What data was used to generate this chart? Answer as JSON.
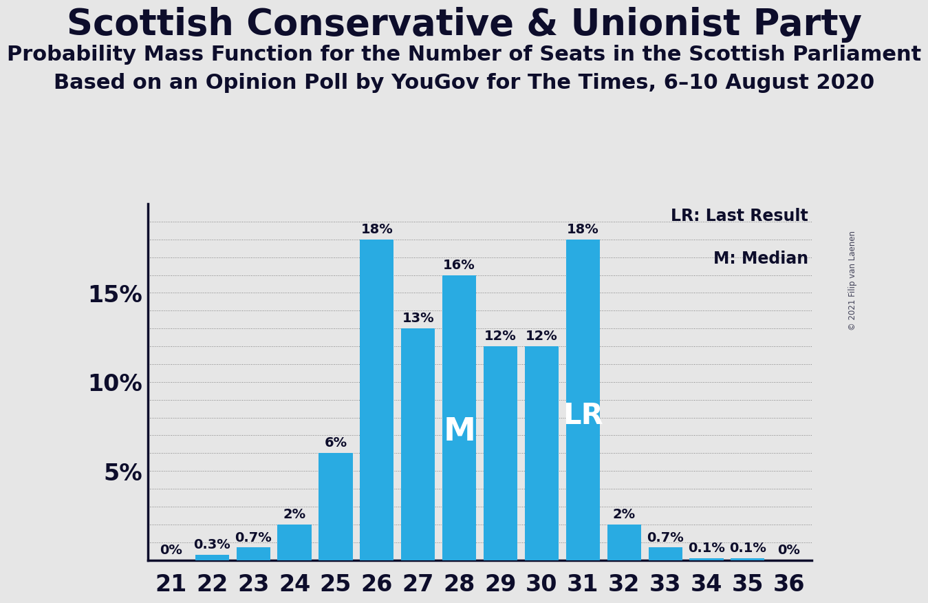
{
  "title": "Scottish Conservative & Unionist Party",
  "subtitle1": "Probability Mass Function for the Number of Seats in the Scottish Parliament",
  "subtitle2": "Based on an Opinion Poll by YouGov for The Times, 6–10 August 2020",
  "copyright": "© 2021 Filip van Laenen",
  "seats": [
    21,
    22,
    23,
    24,
    25,
    26,
    27,
    28,
    29,
    30,
    31,
    32,
    33,
    34,
    35,
    36
  ],
  "probabilities": [
    0.0,
    0.3,
    0.7,
    2.0,
    6.0,
    18.0,
    13.0,
    16.0,
    12.0,
    12.0,
    18.0,
    2.0,
    0.7,
    0.1,
    0.1,
    0.0
  ],
  "bar_color": "#29ABE2",
  "background_color": "#E6E6E6",
  "text_color": "#0D0D2B",
  "grid_color": "#555555",
  "median_seat": 28,
  "last_result_seat": 31,
  "legend_lr": "LR: Last Result",
  "legend_m": "M: Median",
  "label_fontsize": 14,
  "tick_fontsize": 24,
  "title_fontsize": 38,
  "subtitle_fontsize": 22,
  "bar_width": 0.82
}
